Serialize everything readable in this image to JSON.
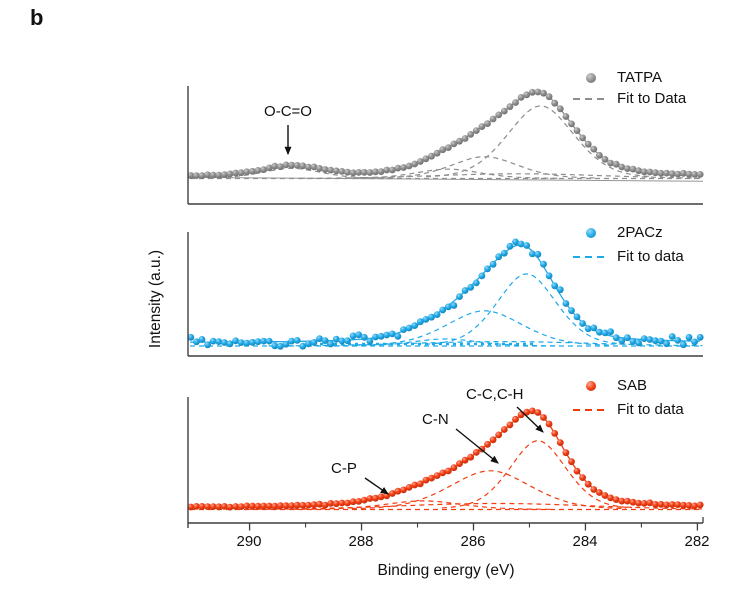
{
  "figure": {
    "panel_label": "b"
  },
  "axes": {
    "x_label": "Binding energy (eV)",
    "y_label": "Intensity (a.u.)"
  },
  "chart_data": {
    "type": "line",
    "description": "XPS C 1s spectra (data points with dashed fitted peak components) for three materials, stacked in three panels sharing one binding-energy axis",
    "x_axis": {
      "label": "Binding energy (eV)",
      "unit": "eV",
      "range_eV": [
        291.1,
        281.9
      ],
      "reversed": true,
      "major_ticks": [
        290,
        288,
        286,
        284,
        282
      ],
      "minor_ticks": [
        289,
        287,
        285,
        283
      ]
    },
    "y_axis": {
      "label": "Intensity (a.u.)",
      "scale": "arbitrary"
    },
    "panels": [
      {
        "name": "TATPA",
        "color": "#8d8d8d",
        "legend": {
          "series": "TATPA",
          "fit": "Fit to Data"
        },
        "annotations": [
          {
            "label": "O-C=O",
            "points_to_eV": 289.25
          }
        ],
        "fit_components": [
          {
            "center_eV": 284.8,
            "sigma_eV": 0.62,
            "rel_amplitude": 0.93
          },
          {
            "center_eV": 285.8,
            "sigma_eV": 0.62,
            "rel_amplitude": 0.28
          },
          {
            "center_eV": 286.45,
            "sigma_eV": 0.6,
            "rel_amplitude": 0.12
          },
          {
            "center_eV": 289.25,
            "sigma_eV": 0.55,
            "rel_amplitude": 0.13,
            "assignment": "O-C=O"
          },
          {
            "center_eV": 285.2,
            "sigma_eV": 1.5,
            "rel_amplitude": 0.06,
            "broad": true
          }
        ],
        "peak_max_eV": 284.8,
        "noise_rel": 0.006,
        "seed": 11
      },
      {
        "name": "2PACz",
        "color": "#1ea9e9",
        "legend": {
          "series": "2PACz",
          "fit": "Fit to data"
        },
        "annotations": [],
        "fit_components": [
          {
            "center_eV": 285.05,
            "sigma_eV": 0.55,
            "rel_amplitude": 0.82
          },
          {
            "center_eV": 285.8,
            "sigma_eV": 0.7,
            "rel_amplitude": 0.4
          },
          {
            "center_eV": 286.5,
            "sigma_eV": 0.6,
            "rel_amplitude": 0.08
          },
          {
            "center_eV": 285.5,
            "sigma_eV": 1.6,
            "rel_amplitude": 0.05,
            "broad": true
          }
        ],
        "peak_max_eV": 285.0,
        "noise_rel": 0.033,
        "seed": 23
      },
      {
        "name": "SAB",
        "color": "#f33b10",
        "legend": {
          "series": "SAB",
          "fit": "Fit to data"
        },
        "annotations": [
          {
            "label": "C-P",
            "points_to_eV": 287.55
          },
          {
            "label": "C-N",
            "points_to_eV": 285.7
          },
          {
            "label": "C-C,C-H",
            "points_to_eV": 284.85
          }
        ],
        "fit_components": [
          {
            "center_eV": 284.85,
            "sigma_eV": 0.52,
            "rel_amplitude": 0.8,
            "assignment": "C-C,C-H"
          },
          {
            "center_eV": 285.7,
            "sigma_eV": 0.75,
            "rel_amplitude": 0.45,
            "assignment": "C-N"
          },
          {
            "center_eV": 286.9,
            "sigma_eV": 0.7,
            "rel_amplitude": 0.1,
            "assignment": "C-P"
          },
          {
            "center_eV": 285.6,
            "sigma_eV": 1.7,
            "rel_amplitude": 0.07,
            "broad": true
          }
        ],
        "peak_max_eV": 284.9,
        "noise_rel": 0.005,
        "seed": 37
      }
    ]
  }
}
